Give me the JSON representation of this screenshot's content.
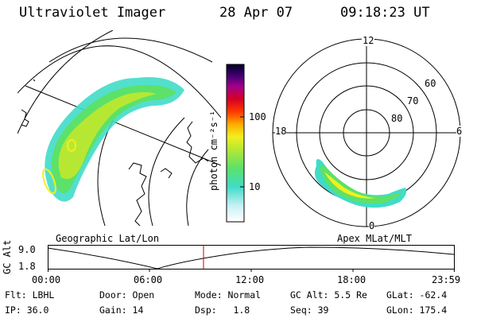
{
  "header": {
    "instrument": "Ultraviolet Imager",
    "date": "28 Apr 07",
    "time": "09:18:23 UT"
  },
  "colorbar": {
    "unit_label": "photon cm⁻²s⁻¹",
    "ticks": [
      "100",
      "10"
    ],
    "scale": "log",
    "colors": [
      "#ffffff",
      "#c9f1f6",
      "#40dcc8",
      "#5ce16a",
      "#b6e833",
      "#f2ef1f",
      "#ffab00",
      "#ff3800",
      "#d40022",
      "#a3008c",
      "#3f006f",
      "#000028"
    ]
  },
  "geo_panel": {
    "title": "Geographic Lat/Lon"
  },
  "polar_panel": {
    "title": "Apex MLat/MLT",
    "mlt_labels": {
      "top": "12",
      "left": "18",
      "right": "6",
      "bottom": "0"
    },
    "lat_labels": [
      "60",
      "70",
      "80"
    ]
  },
  "altitude_plot": {
    "axis_label": "GC Alt",
    "ytick_top": "9.0",
    "ytick_bottom": "1.8",
    "xticks": [
      "00:00",
      "06:00",
      "12:00",
      "18:00",
      "23:59"
    ],
    "marker_color": "#cc0000"
  },
  "status": {
    "flt": "Flt: LBHL",
    "ip": "IP: 36.0",
    "door": "Door: Open",
    "gain": "Gain: 14",
    "mode": "Mode: Normal",
    "dsp": "Dsp:   1.8",
    "gc_alt": "GC Alt: 5.5 Re",
    "seq": "Seq: 39",
    "glat": "GLat: -62.4",
    "glon": "GLon: 175.4"
  }
}
